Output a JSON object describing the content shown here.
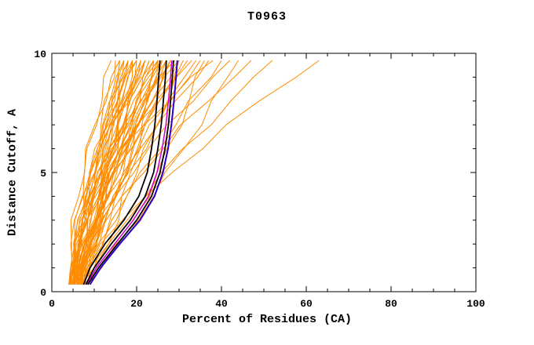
{
  "chart_data": {
    "type": "line",
    "title": "T0963",
    "xlabel": "Percent of Residues (CA)",
    "ylabel": "Distance Cutoff, A",
    "xlim": [
      0,
      100
    ],
    "ylim": [
      0,
      10
    ],
    "x_major_ticks": [
      0,
      20,
      40,
      60,
      80,
      100
    ],
    "x_minor_step": 5,
    "y_major_ticks": [
      0,
      5,
      10
    ],
    "y_minor_step": 1,
    "grid": "off",
    "legend": "none",
    "y_grid": [
      0.3,
      1,
      2,
      3,
      4,
      5,
      6,
      7,
      8,
      9,
      9.7
    ],
    "colors": {
      "background_model": "#ff8c00",
      "model_black": "#000000",
      "model_blue": "#2a00cc",
      "model_magenta": "#cc00cc",
      "axis": "#000000",
      "page_background": "#ffffff"
    },
    "shapes": {
      "A": [
        0.0,
        0.01,
        0.04,
        0.1,
        0.17,
        0.27,
        0.38,
        0.52,
        0.68,
        0.86,
        1.0
      ],
      "B": [
        0.01,
        0.03,
        0.09,
        0.17,
        0.27,
        0.37,
        0.49,
        0.61,
        0.75,
        0.89,
        1.0
      ],
      "C": [
        0.02,
        0.07,
        0.15,
        0.25,
        0.35,
        0.45,
        0.56,
        0.68,
        0.79,
        0.92,
        1.0
      ],
      "D": [
        0.04,
        0.13,
        0.24,
        0.35,
        0.45,
        0.55,
        0.65,
        0.75,
        0.84,
        0.94,
        1.0
      ],
      "E": [
        0.08,
        0.2,
        0.34,
        0.46,
        0.56,
        0.65,
        0.73,
        0.81,
        0.88,
        0.95,
        1.0
      ]
    },
    "background_series": [
      {
        "start": 4,
        "end": 14,
        "shape": "B"
      },
      {
        "start": 5,
        "end": 15,
        "shape": "C"
      },
      {
        "start": 4,
        "end": 16,
        "shape": "A"
      },
      {
        "start": 6,
        "end": 16,
        "shape": "E"
      },
      {
        "start": 5,
        "end": 16,
        "shape": "D"
      },
      {
        "start": 5,
        "end": 17,
        "shape": "B"
      },
      {
        "start": 4,
        "end": 17,
        "shape": "C"
      },
      {
        "start": 6,
        "end": 17,
        "shape": "E"
      },
      {
        "start": 6,
        "end": 18,
        "shape": "A"
      },
      {
        "start": 5,
        "end": 18,
        "shape": "B"
      },
      {
        "start": 7,
        "end": 18,
        "shape": "D"
      },
      {
        "start": 4,
        "end": 19,
        "shape": "C"
      },
      {
        "start": 6,
        "end": 19,
        "shape": "B"
      },
      {
        "start": 5,
        "end": 19,
        "shape": "E"
      },
      {
        "start": 5,
        "end": 20,
        "shape": "A"
      },
      {
        "start": 7,
        "end": 20,
        "shape": "C"
      },
      {
        "start": 4,
        "end": 20,
        "shape": "B"
      },
      {
        "start": 6,
        "end": 21,
        "shape": "D"
      },
      {
        "start": 5,
        "end": 21,
        "shape": "B"
      },
      {
        "start": 4,
        "end": 21,
        "shape": "D"
      },
      {
        "start": 7,
        "end": 22,
        "shape": "A"
      },
      {
        "start": 4,
        "end": 22,
        "shape": "C"
      },
      {
        "start": 6,
        "end": 22,
        "shape": "B"
      },
      {
        "start": 5,
        "end": 23,
        "shape": "D"
      },
      {
        "start": 7,
        "end": 23,
        "shape": "B"
      },
      {
        "start": 4,
        "end": 24,
        "shape": "A"
      },
      {
        "start": 6,
        "end": 24,
        "shape": "C"
      },
      {
        "start": 5,
        "end": 24,
        "shape": "E"
      },
      {
        "start": 5,
        "end": 25,
        "shape": "B"
      },
      {
        "start": 7,
        "end": 25,
        "shape": "E"
      },
      {
        "start": 6,
        "end": 25,
        "shape": "D"
      },
      {
        "start": 4,
        "end": 25,
        "shape": "C"
      },
      {
        "start": 4,
        "end": 26,
        "shape": "B"
      },
      {
        "start": 6,
        "end": 26,
        "shape": "A"
      },
      {
        "start": 7,
        "end": 26,
        "shape": "C"
      },
      {
        "start": 5,
        "end": 27,
        "shape": "C"
      },
      {
        "start": 7,
        "end": 27,
        "shape": "B"
      },
      {
        "start": 4,
        "end": 28,
        "shape": "D"
      },
      {
        "start": 6,
        "end": 28,
        "shape": "B"
      },
      {
        "start": 5,
        "end": 28,
        "shape": "C"
      },
      {
        "start": 5,
        "end": 29,
        "shape": "A"
      },
      {
        "start": 7,
        "end": 30,
        "shape": "C"
      },
      {
        "start": 4,
        "end": 30,
        "shape": "B"
      },
      {
        "start": 6,
        "end": 30,
        "shape": "B"
      },
      {
        "start": 6,
        "end": 31,
        "shape": "D"
      },
      {
        "start": 5,
        "end": 32,
        "shape": "B"
      },
      {
        "start": 7,
        "end": 33,
        "shape": "A"
      },
      {
        "start": 4,
        "end": 34,
        "shape": "C"
      },
      {
        "start": 6,
        "end": 35,
        "shape": "B"
      },
      {
        "start": 5,
        "end": 36,
        "shape": "E"
      },
      {
        "start": 7,
        "end": 37,
        "shape": "B"
      },
      {
        "start": 4,
        "end": 38,
        "shape": "A"
      },
      {
        "start": 6,
        "end": 40,
        "shape": "C"
      },
      {
        "start": 5,
        "end": 42,
        "shape": "B"
      },
      {
        "start": 7,
        "end": 44,
        "shape": "D"
      },
      {
        "start": 6,
        "end": 47,
        "shape": "B"
      },
      {
        "start": 5,
        "end": 52,
        "shape": "C"
      },
      {
        "start": 8,
        "end": 63,
        "shape": "B"
      }
    ],
    "highlight_series": [
      {
        "name": "model-black-left",
        "color": "#000000",
        "width": 1.8,
        "x": [
          7.5,
          9,
          12.5,
          17,
          20.5,
          22.5,
          23.5,
          24.3,
          24.8,
          25.2,
          25.5
        ]
      },
      {
        "name": "model-magenta",
        "color": "#cc00cc",
        "width": 1.5,
        "x": [
          8.2,
          10.5,
          14.8,
          19.2,
          22.8,
          24.8,
          26,
          26.9,
          27.5,
          28,
          28.3
        ]
      },
      {
        "name": "model-black-mid",
        "color": "#000000",
        "width": 1.8,
        "x": [
          8,
          10,
          14,
          18.5,
          22,
          24,
          25,
          25.8,
          26.3,
          26.8,
          27
        ]
      },
      {
        "name": "model-black-right",
        "color": "#000000",
        "width": 1.8,
        "x": [
          8.5,
          11,
          15.5,
          20,
          23.5,
          25.5,
          26.7,
          27.5,
          28,
          28.4,
          28.7
        ]
      },
      {
        "name": "model-blue",
        "color": "#2a00cc",
        "width": 2,
        "x": [
          9,
          11.5,
          16,
          20.8,
          24.2,
          26.2,
          27.4,
          28.2,
          28.8,
          29.3,
          29.6
        ]
      }
    ]
  }
}
